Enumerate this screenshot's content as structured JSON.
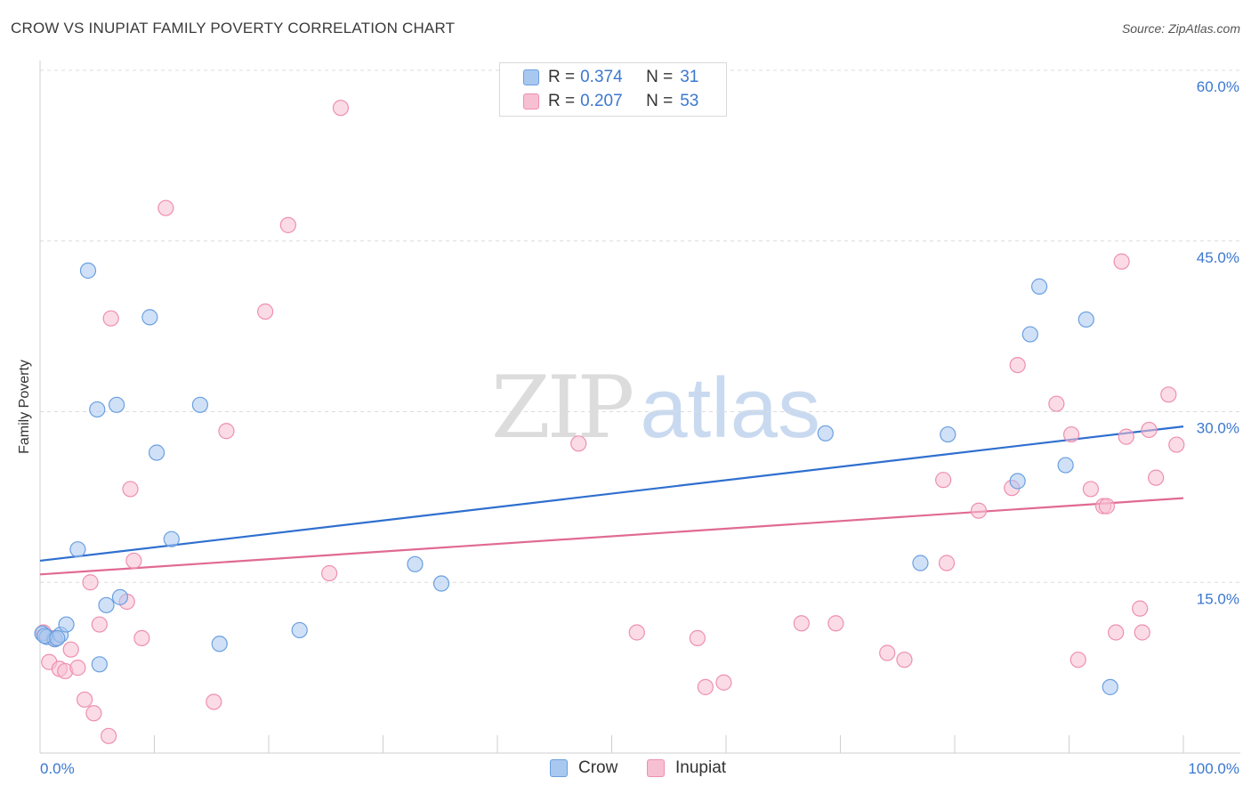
{
  "title": "CROW VS INUPIAT FAMILY POVERTY CORRELATION CHART",
  "source": "Source: ZipAtlas.com",
  "watermark": {
    "part1": "ZIP",
    "part2": "atlas"
  },
  "legend": [
    {
      "r_label": "R =",
      "r_value": "0.374",
      "n_label": "N =",
      "n_value": "31"
    },
    {
      "r_label": "R =",
      "r_value": "0.207",
      "n_label": "N =",
      "n_value": "53"
    }
  ],
  "bottom_legend": [
    "Crow",
    "Inupiat"
  ],
  "colors": {
    "crow_fill": "#a9c8f0",
    "crow_stroke": "#6a9fe0",
    "crow_line": "#2f6fcf",
    "inupiat_fill": "#f7c0d2",
    "inupiat_stroke": "#ee8fb0",
    "inupiat_line": "#e06a94",
    "grid": "#dcdcdc",
    "axis_text": "#3b78d0"
  },
  "chart_data": {
    "type": "scatter",
    "title": "CROW VS INUPIAT FAMILY POVERTY CORRELATION CHART",
    "xlabel": "",
    "ylabel": "Family Poverty",
    "xlim": [
      0,
      100
    ],
    "ylim": [
      0,
      60
    ],
    "x_tick_labels": [
      "0.0%",
      "100.0%"
    ],
    "y_ticks": [
      15,
      30,
      45,
      60
    ],
    "y_tick_labels": [
      "15.0%",
      "30.0%",
      "45.0%",
      "60.0%"
    ],
    "grid": true,
    "series": [
      {
        "name": "Crow",
        "points": [
          [
            0.2,
            10.5
          ],
          [
            0.6,
            10.2
          ],
          [
            1.3,
            10.0
          ],
          [
            1.8,
            10.4
          ],
          [
            2.3,
            11.3
          ],
          [
            3.3,
            17.9
          ],
          [
            4.2,
            42.4
          ],
          [
            5.0,
            30.2
          ],
          [
            5.2,
            7.8
          ],
          [
            5.8,
            13.0
          ],
          [
            6.7,
            30.6
          ],
          [
            7.0,
            13.7
          ],
          [
            9.6,
            38.3
          ],
          [
            10.2,
            26.4
          ],
          [
            11.5,
            18.8
          ],
          [
            14.0,
            30.6
          ],
          [
            15.7,
            9.6
          ],
          [
            22.7,
            10.8
          ],
          [
            32.8,
            16.6
          ],
          [
            35.1,
            14.9
          ],
          [
            68.7,
            28.1
          ],
          [
            77.0,
            16.7
          ],
          [
            79.4,
            28.0
          ],
          [
            85.5,
            23.9
          ],
          [
            86.6,
            36.8
          ],
          [
            87.4,
            41.0
          ],
          [
            89.7,
            25.3
          ],
          [
            91.5,
            38.1
          ],
          [
            93.6,
            5.8
          ],
          [
            0.4,
            10.3
          ],
          [
            1.5,
            10.1
          ]
        ]
      },
      {
        "name": "Inupiat",
        "points": [
          [
            0.3,
            10.6
          ],
          [
            0.8,
            8.0
          ],
          [
            1.2,
            10.1
          ],
          [
            1.7,
            7.4
          ],
          [
            2.2,
            7.2
          ],
          [
            2.7,
            9.1
          ],
          [
            3.3,
            7.5
          ],
          [
            3.9,
            4.7
          ],
          [
            4.4,
            15.0
          ],
          [
            4.7,
            3.5
          ],
          [
            5.2,
            11.3
          ],
          [
            6.0,
            1.5
          ],
          [
            6.2,
            38.2
          ],
          [
            7.6,
            13.3
          ],
          [
            7.9,
            23.2
          ],
          [
            8.2,
            16.9
          ],
          [
            8.9,
            10.1
          ],
          [
            11.0,
            47.9
          ],
          [
            15.2,
            4.5
          ],
          [
            16.3,
            28.3
          ],
          [
            19.7,
            38.8
          ],
          [
            21.7,
            46.4
          ],
          [
            25.3,
            15.8
          ],
          [
            26.3,
            56.7
          ],
          [
            47.1,
            27.2
          ],
          [
            52.2,
            10.6
          ],
          [
            57.5,
            10.1
          ],
          [
            58.2,
            5.8
          ],
          [
            59.8,
            6.2
          ],
          [
            66.6,
            11.4
          ],
          [
            69.6,
            11.4
          ],
          [
            74.1,
            8.8
          ],
          [
            75.6,
            8.2
          ],
          [
            79.0,
            24.0
          ],
          [
            79.3,
            16.7
          ],
          [
            82.1,
            21.3
          ],
          [
            85.0,
            23.3
          ],
          [
            85.5,
            34.1
          ],
          [
            88.9,
            30.7
          ],
          [
            90.2,
            28.0
          ],
          [
            90.8,
            8.2
          ],
          [
            91.9,
            23.2
          ],
          [
            93.0,
            21.7
          ],
          [
            93.3,
            21.7
          ],
          [
            94.1,
            10.6
          ],
          [
            94.6,
            43.2
          ],
          [
            95.0,
            27.8
          ],
          [
            96.2,
            12.7
          ],
          [
            96.4,
            10.6
          ],
          [
            97.0,
            28.4
          ],
          [
            97.6,
            24.2
          ],
          [
            98.7,
            31.5
          ],
          [
            99.4,
            27.1
          ]
        ]
      }
    ],
    "trendlines": [
      {
        "name": "Crow",
        "x": [
          0,
          100
        ],
        "y": [
          16.9,
          28.7
        ]
      },
      {
        "name": "Inupiat",
        "x": [
          0,
          100
        ],
        "y": [
          15.7,
          22.4
        ]
      }
    ]
  }
}
